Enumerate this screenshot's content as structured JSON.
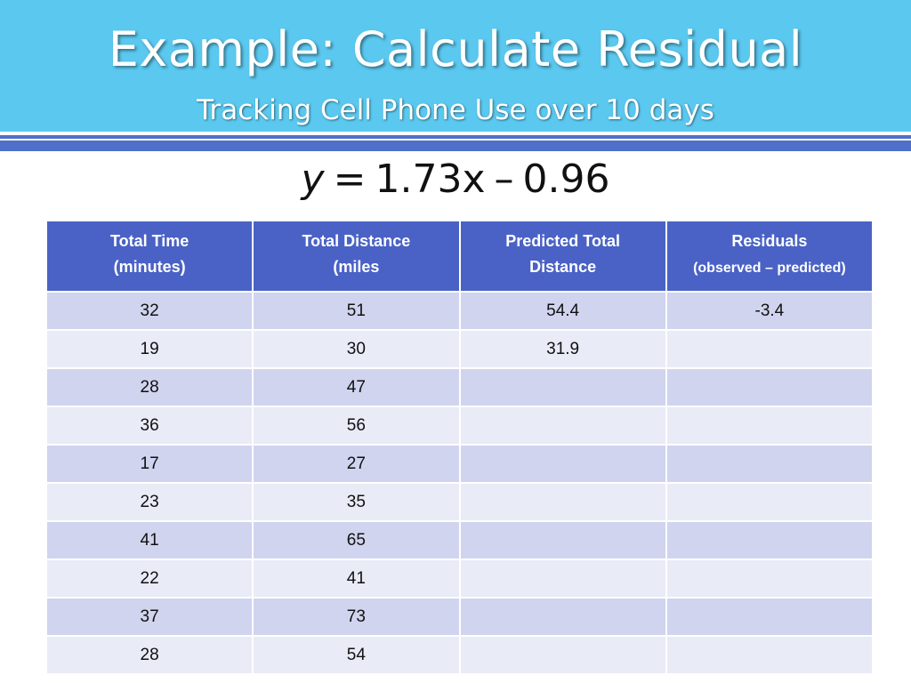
{
  "title": {
    "main": "Example:  Calculate Residual",
    "sub": "Tracking Cell Phone Use over 10 days"
  },
  "equation": {
    "lhs": "y",
    "rhs_coef": "1.73",
    "rhs_var": "x",
    "rhs_const": "0.96",
    "equals": "=",
    "minus": "–"
  },
  "table": {
    "headers": [
      {
        "line1": "Total Time",
        "line2": "(minutes)"
      },
      {
        "line1": "Total Distance",
        "line2": "(miles"
      },
      {
        "line1": "Predicted Total",
        "line2": "Distance"
      },
      {
        "line1": "Residuals",
        "line2": "(observed – predicted)"
      }
    ],
    "rows": [
      [
        "32",
        "51",
        "54.4",
        "-3.4"
      ],
      [
        "19",
        "30",
        "31.9",
        ""
      ],
      [
        "28",
        "47",
        "",
        ""
      ],
      [
        "36",
        "56",
        "",
        ""
      ],
      [
        "17",
        "27",
        "",
        ""
      ],
      [
        "23",
        "35",
        "",
        ""
      ],
      [
        "41",
        "65",
        "",
        ""
      ],
      [
        "22",
        "41",
        "",
        ""
      ],
      [
        "37",
        "73",
        "",
        ""
      ],
      [
        "28",
        "54",
        "",
        ""
      ]
    ]
  },
  "colors": {
    "title_band": "#5bc8ef",
    "rule": "#4f6fc8",
    "header_fill": "#4a62c6",
    "row_odd": "#d0d4ee",
    "row_even": "#e9ebf7"
  }
}
